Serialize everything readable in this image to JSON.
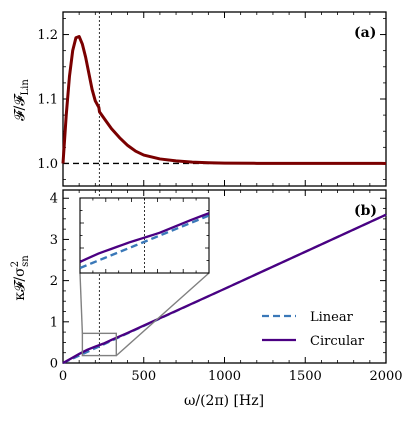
{
  "chart_data": [
    {
      "panel": "(a)",
      "type": "line",
      "ylabel": "𝓕/𝓕",
      "ylabel_sub": "Lin",
      "xlim": [
        0,
        2000
      ],
      "ylim": [
        0.965,
        1.235
      ],
      "yticks": [
        1.0,
        1.1,
        1.2
      ],
      "ytick_labels": [
        "1.0",
        "1.1",
        "1.2"
      ],
      "vline_x": 225,
      "hline_y": 1.0,
      "series": [
        {
          "color": "#7a0000",
          "x": [
            0,
            20,
            40,
            60,
            80,
            100,
            120,
            140,
            160,
            180,
            200,
            222,
            226,
            260,
            300,
            350,
            400,
            450,
            500,
            600,
            700,
            800,
            900,
            1000,
            1200,
            1500,
            2000
          ],
          "y": [
            1.0,
            1.075,
            1.135,
            1.175,
            1.195,
            1.197,
            1.185,
            1.165,
            1.14,
            1.115,
            1.097,
            1.087,
            1.08,
            1.068,
            1.054,
            1.04,
            1.028,
            1.019,
            1.013,
            1.007,
            1.004,
            1.002,
            1.001,
            1.0005,
            1.0002,
            1.0001,
            1.0
          ]
        }
      ]
    },
    {
      "panel": "(b)",
      "type": "line",
      "xlabel": "ω/(2π) [Hz]",
      "ylabel": "κ𝓕/σ",
      "ylabel_sup": "2",
      "ylabel_sub": "sn",
      "xlim": [
        0,
        2000
      ],
      "ylim": [
        0,
        4.2
      ],
      "xticks": [
        0,
        500,
        1000,
        1500,
        2000
      ],
      "xtick_labels": [
        "0",
        "500",
        "1000",
        "1500",
        "2000"
      ],
      "yticks": [
        0,
        1,
        2,
        3,
        4
      ],
      "ytick_labels": [
        "0",
        "1",
        "2",
        "3",
        "4"
      ],
      "vline_x": 225,
      "legend_position": "lower-right",
      "series": [
        {
          "name": "Linear",
          "style": "dashed",
          "color": "#3a78b8",
          "x": [
            0,
            100,
            200,
            300,
            400,
            500,
            1000,
            1500,
            2000
          ],
          "y": [
            0,
            0.18,
            0.36,
            0.54,
            0.72,
            0.9,
            1.8,
            2.7,
            3.6
          ]
        },
        {
          "name": "Circular",
          "style": "solid",
          "color": "#4b0082",
          "x": [
            0,
            50,
            100,
            150,
            200,
            250,
            300,
            400,
            500,
            1000,
            1500,
            2000
          ],
          "y": [
            0,
            0.11,
            0.22,
            0.32,
            0.4,
            0.47,
            0.56,
            0.73,
            0.91,
            1.8,
            2.7,
            3.6
          ]
        }
      ],
      "zoom_box": {
        "x": [
          120,
          330
        ],
        "y": [
          0.18,
          0.72
        ]
      },
      "inset_xlim": [
        120,
        330
      ],
      "inset_ylim": [
        0.18,
        0.72
      ]
    }
  ]
}
